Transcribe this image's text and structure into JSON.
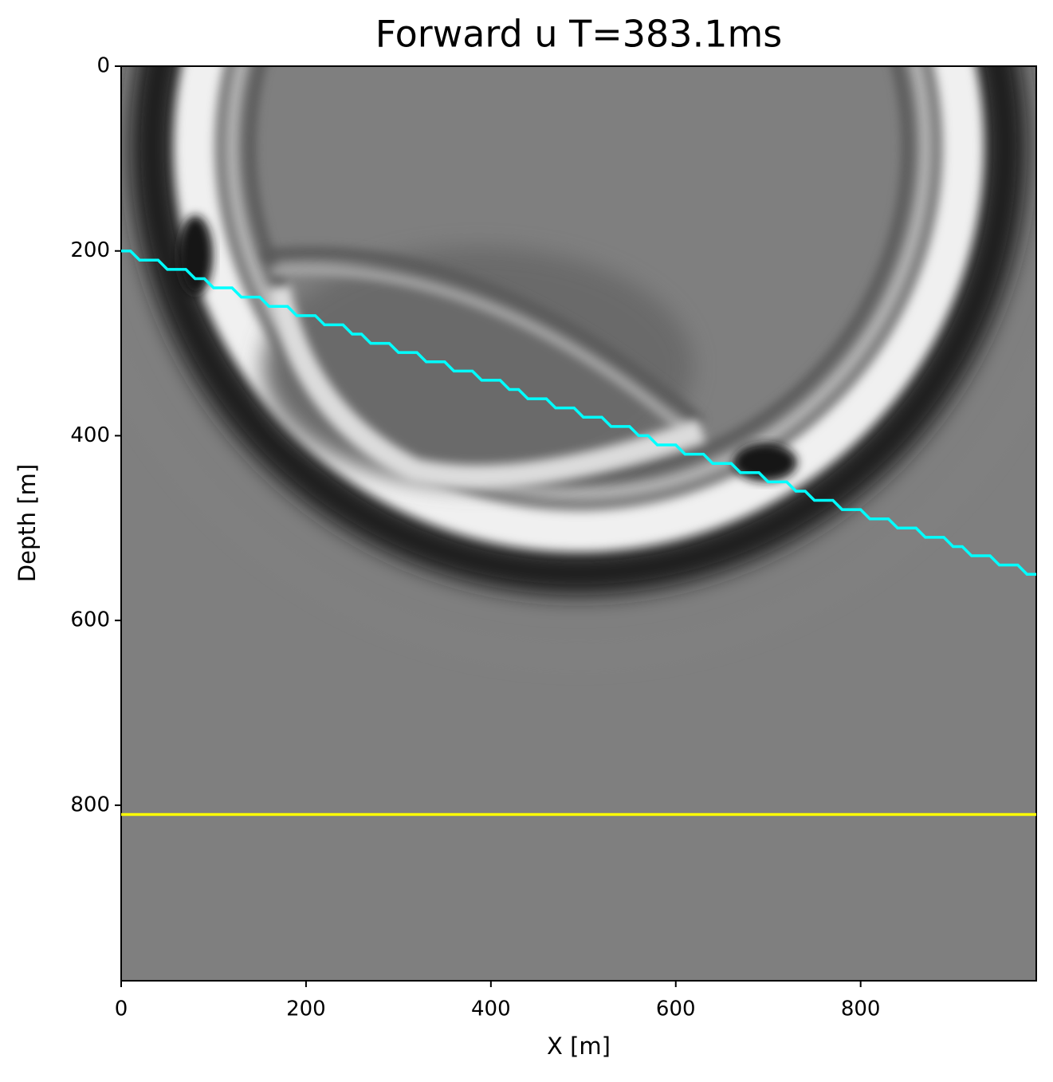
{
  "chart_data": {
    "type": "line",
    "title": "Forward u T=383.1ms",
    "x_label": "X [m]",
    "y_label": "Depth [m]",
    "xlim": [
      0,
      990
    ],
    "ylim": [
      990,
      0
    ],
    "xticks": [
      0,
      200,
      400,
      600,
      800
    ],
    "yticks": [
      0,
      200,
      400,
      600,
      800
    ],
    "series": [
      {
        "color": "#00ffff",
        "x": [
          0,
          10,
          20,
          30,
          40,
          50,
          60,
          70,
          80,
          90,
          100,
          110,
          120,
          130,
          140,
          150,
          160,
          170,
          180,
          190,
          200,
          210,
          220,
          230,
          240,
          250,
          260,
          270,
          280,
          290,
          300,
          310,
          320,
          330,
          340,
          350,
          360,
          370,
          380,
          390,
          400,
          410,
          420,
          430,
          440,
          450,
          460,
          470,
          480,
          490,
          500,
          510,
          520,
          530,
          540,
          550,
          560,
          570,
          580,
          590,
          600,
          610,
          620,
          630,
          640,
          650,
          660,
          670,
          680,
          690,
          700,
          710,
          720,
          730,
          740,
          750,
          760,
          770,
          780,
          790,
          800,
          810,
          820,
          830,
          840,
          850,
          860,
          870,
          880,
          890,
          900,
          910,
          920,
          930,
          940,
          950,
          960,
          970,
          980,
          990
        ],
        "values": [
          200,
          200,
          210,
          210,
          210,
          220,
          220,
          220,
          230,
          230,
          240,
          240,
          240,
          250,
          250,
          250,
          260,
          260,
          260,
          270,
          270,
          270,
          280,
          280,
          280,
          290,
          290,
          300,
          300,
          300,
          310,
          310,
          310,
          320,
          320,
          320,
          330,
          330,
          330,
          340,
          340,
          340,
          350,
          350,
          360,
          360,
          360,
          370,
          370,
          370,
          380,
          380,
          380,
          390,
          390,
          390,
          400,
          400,
          410,
          410,
          410,
          420,
          420,
          420,
          430,
          430,
          430,
          440,
          440,
          440,
          450,
          450,
          450,
          460,
          460,
          470,
          470,
          470,
          480,
          480,
          480,
          490,
          490,
          490,
          500,
          500,
          500,
          510,
          510,
          510,
          520,
          520,
          530,
          530,
          530,
          540,
          540,
          540,
          550,
          550
        ]
      },
      {
        "color": "#ffff00",
        "x": [
          0,
          990
        ],
        "values": [
          810,
          810
        ]
      }
    ]
  }
}
